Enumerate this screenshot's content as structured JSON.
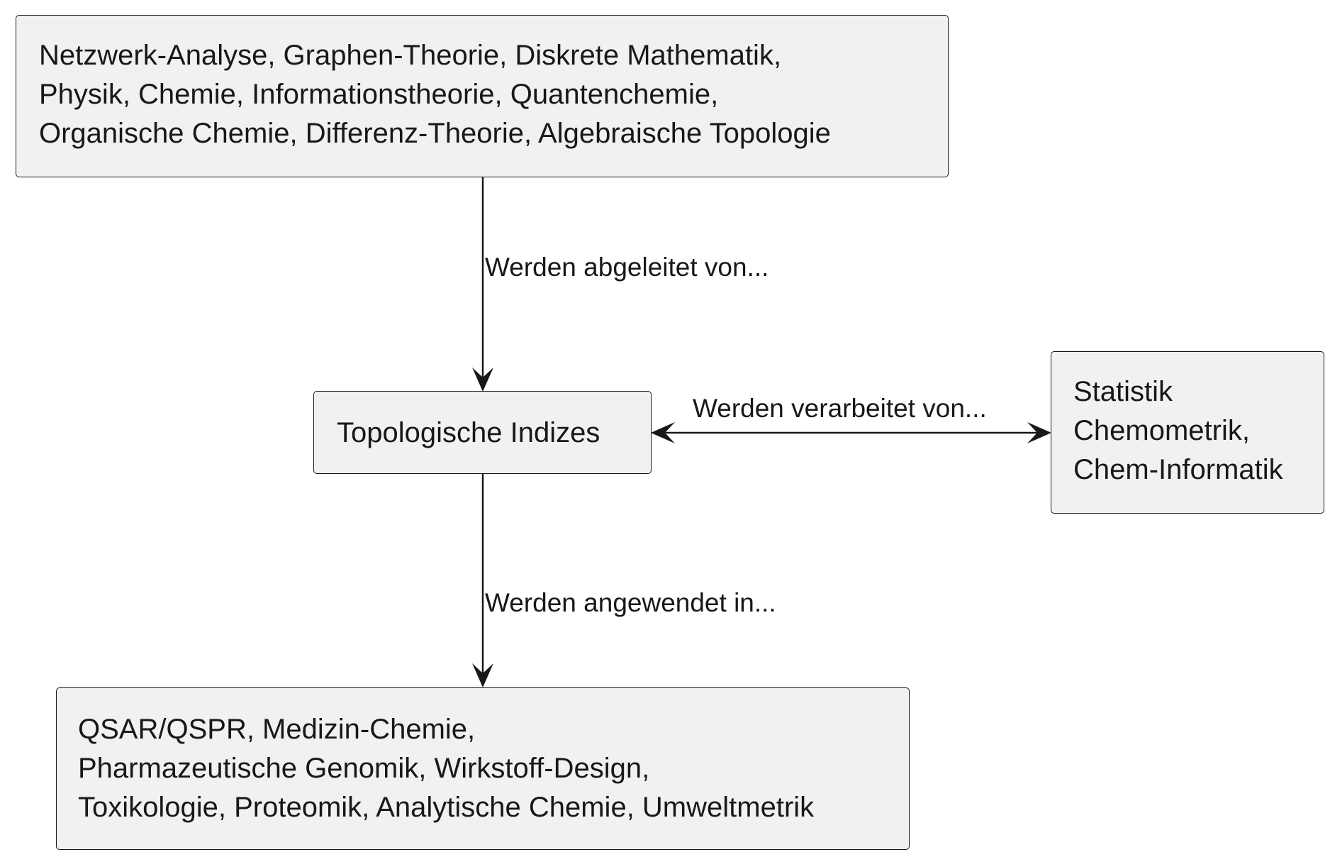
{
  "nodes": {
    "sources": {
      "lines": [
        "Netzwerk-Analyse, Graphen-Theorie, Diskrete Mathematik,",
        "Physik, Chemie, Informationstheorie, Quantenchemie,",
        "Organische Chemie, Differenz-Theorie, Algebraische Topologie"
      ]
    },
    "center": {
      "label": "Topologische Indizes"
    },
    "processing": {
      "lines": [
        "Statistik",
        "Chemometrik,",
        "Chem-Informatik"
      ]
    },
    "applications": {
      "lines": [
        "QSAR/QSPR, Medizin-Chemie,",
        "Pharmazeutische Genomik, Wirkstoff-Design,",
        "Toxikologie, Proteomik, Analytische Chemie, Umweltmetrik"
      ]
    }
  },
  "edges": {
    "derived_from": "Werden abgeleitet von...",
    "processed_by": "Werden verarbeitet von...",
    "applied_in": "Werden angewendet in..."
  },
  "colors": {
    "box_fill": "#f1f1f1",
    "line": "#181818",
    "text": "#181818"
  }
}
